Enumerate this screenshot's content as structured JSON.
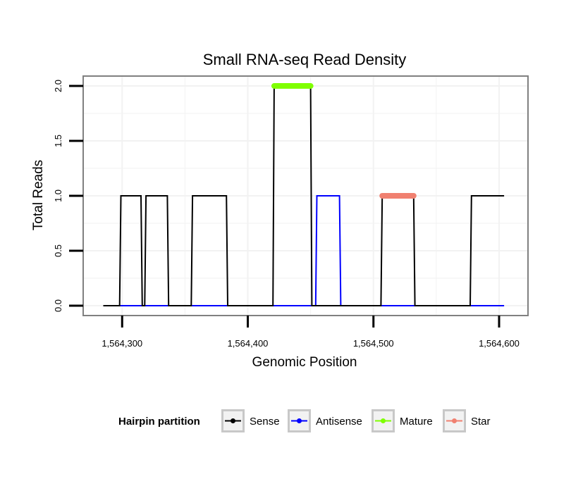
{
  "chart_data": {
    "type": "line",
    "title": "Small RNA-seq Read Density",
    "xlabel": "Genomic Position",
    "ylabel": "Total Reads",
    "xlim": [
      1564269,
      1564623
    ],
    "ylim": [
      -0.09,
      2.09
    ],
    "x_ticks": [
      1564300,
      1564400,
      1564500,
      1564600
    ],
    "x_tick_labels": [
      "1,564,300",
      "1,564,400",
      "1,564,500",
      "1,564,600"
    ],
    "y_ticks": [
      0,
      0.5,
      1,
      1.5,
      2
    ],
    "y_tick_labels": [
      "0.0",
      "0.5",
      "1.0",
      "1.5",
      "2.0"
    ],
    "grid": true,
    "series": [
      {
        "name": "Sense",
        "color": "#000000",
        "x": [
          1564285,
          1564298,
          1564299,
          1564315,
          1564316,
          1564318,
          1564319,
          1564336,
          1564337,
          1564355,
          1564356,
          1564383,
          1564384,
          1564420,
          1564421,
          1564450,
          1564451,
          1564506,
          1564507,
          1564532,
          1564533,
          1564577,
          1564578,
          1564604
        ],
        "y": [
          0,
          0,
          1,
          1,
          0,
          0,
          1,
          1,
          0,
          0,
          1,
          1,
          0,
          0,
          2,
          2,
          0,
          0,
          1,
          1,
          0,
          0,
          1,
          1
        ]
      },
      {
        "name": "Antisense",
        "color": "#0000ff",
        "x": [
          1564285,
          1564454,
          1564455,
          1564473,
          1564474,
          1564604
        ],
        "y": [
          0,
          0,
          1,
          1,
          0,
          0
        ]
      },
      {
        "name": "Mature",
        "color": "#7fff00",
        "x": [
          1564421,
          1564450
        ],
        "y": [
          2,
          2
        ]
      },
      {
        "name": "Star",
        "color": "#f08070",
        "x": [
          1564507,
          1564532
        ],
        "y": [
          1,
          1
        ]
      }
    ],
    "legend": {
      "title": "Hairpin partition",
      "position": "bottom",
      "items": [
        "Sense",
        "Antisense",
        "Mature",
        "Star"
      ]
    }
  }
}
